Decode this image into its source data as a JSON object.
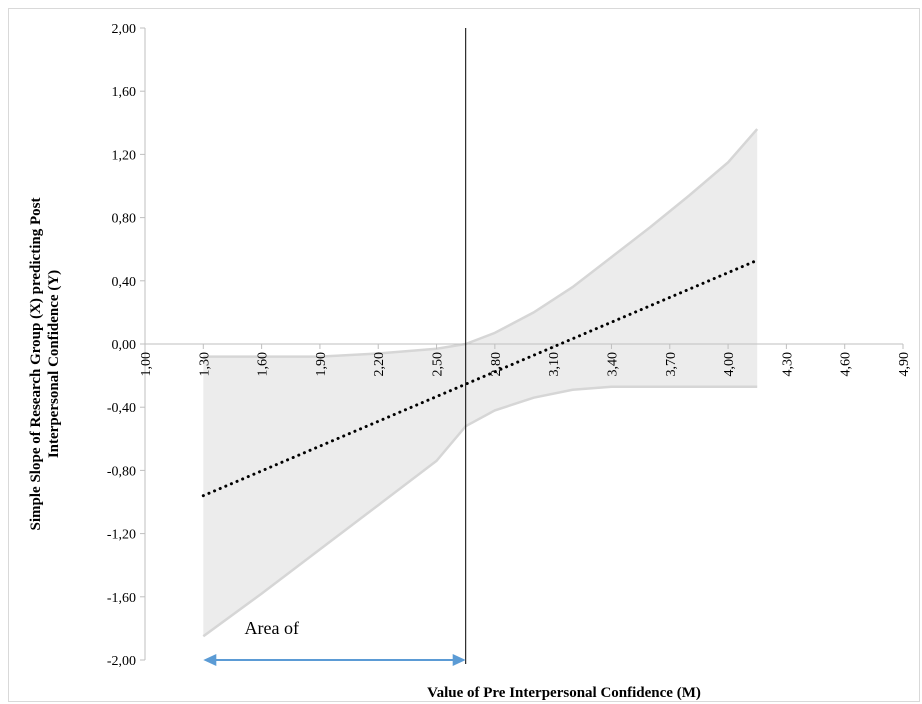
{
  "chart_data": {
    "type": "line",
    "title": "",
    "xlabel": "Value of Pre Interpersonal  Confidence  (M)",
    "ylabel_lines": [
      "Simple Slope of Research Group  (X) predicting Post",
      "Interpersonal  Confidence  (Y)"
    ],
    "xlim": [
      1.0,
      4.9
    ],
    "ylim": [
      -2.0,
      2.0
    ],
    "x_ticks": [
      "1,00",
      "1,30",
      "1,60",
      "1,90",
      "2,20",
      "2,50",
      "2,80",
      "3,10",
      "3,40",
      "3,70",
      "4,00",
      "4,30",
      "4,60",
      "4,90"
    ],
    "x_tick_values": [
      1.0,
      1.3,
      1.6,
      1.9,
      2.2,
      2.5,
      2.8,
      3.1,
      3.4,
      3.7,
      4.0,
      4.3,
      4.6,
      4.9
    ],
    "y_ticks": [
      "2,00",
      "1,60",
      "1,20",
      "0,80",
      "0,40",
      "0,00",
      "-0,40",
      "-0,80",
      "-1,20",
      "-1,60",
      "-2,00"
    ],
    "y_tick_values": [
      2.0,
      1.6,
      1.2,
      0.8,
      0.4,
      0.0,
      -0.4,
      -0.8,
      -1.2,
      -1.6,
      -2.0
    ],
    "series": [
      {
        "style": "dotted",
        "x": [
          1.3,
          4.15
        ],
        "y": [
          -0.96,
          0.53
        ]
      }
    ],
    "confidence_band": {
      "upper": {
        "x": [
          1.3,
          1.6,
          1.9,
          2.2,
          2.5,
          2.65,
          2.8,
          3.0,
          3.2,
          3.4,
          3.6,
          3.8,
          4.0,
          4.15
        ],
        "y": [
          -0.08,
          -0.08,
          -0.08,
          -0.06,
          -0.03,
          0.0,
          0.07,
          0.2,
          0.36,
          0.55,
          0.74,
          0.94,
          1.15,
          1.36
        ]
      },
      "lower": {
        "x": [
          1.3,
          1.6,
          1.9,
          2.2,
          2.5,
          2.65,
          2.8,
          3.0,
          3.2,
          3.4,
          3.6,
          3.8,
          4.0,
          4.15
        ],
        "y": [
          -1.85,
          -1.58,
          -1.3,
          -1.02,
          -0.74,
          -0.52,
          -0.42,
          -0.34,
          -0.29,
          -0.27,
          -0.27,
          -0.27,
          -0.27,
          -0.27
        ]
      },
      "color": "#ececec",
      "edge_color": "#d6d6d6"
    },
    "vertical_line_x": 2.65,
    "annotation": {
      "text": "Area of",
      "arrow_from": 1.3,
      "arrow_to": 2.65,
      "arrow_color": "#5b9bd5"
    },
    "grid": false
  }
}
